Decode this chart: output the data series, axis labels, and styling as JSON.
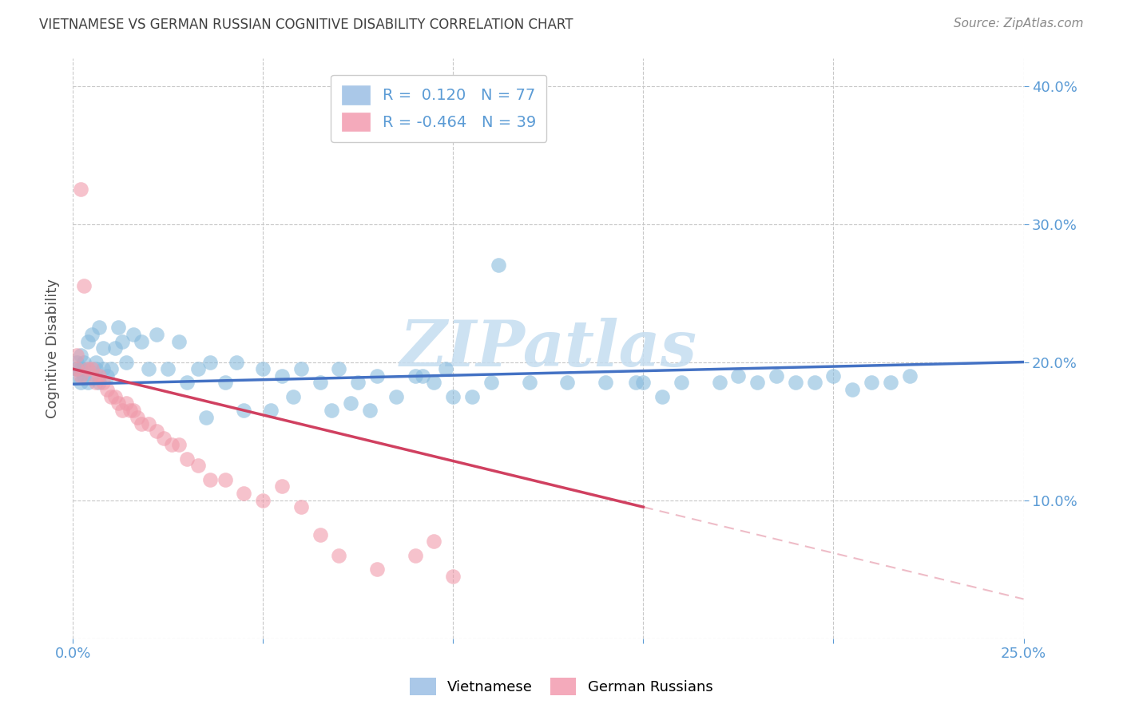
{
  "title": "VIETNAMESE VS GERMAN RUSSIAN COGNITIVE DISABILITY CORRELATION CHART",
  "source": "Source: ZipAtlas.com",
  "ylabel": "Cognitive Disability",
  "xlim": [
    0.0,
    0.25
  ],
  "ylim": [
    0.0,
    0.42
  ],
  "blue_color": "#88bbdd",
  "pink_color": "#f09aaa",
  "blue_line_color": "#4472c4",
  "pink_line_color": "#d04060",
  "axis_color": "#5b9bd5",
  "title_color": "#404040",
  "watermark_color": "#c5ddf0",
  "legend_R_blue": "0.120",
  "legend_N_blue": "77",
  "legend_R_pink": "-0.464",
  "legend_N_pink": "39",
  "viet_x": [
    0.001,
    0.001,
    0.001,
    0.002,
    0.002,
    0.002,
    0.003,
    0.003,
    0.003,
    0.004,
    0.004,
    0.005,
    0.005,
    0.006,
    0.006,
    0.007,
    0.007,
    0.008,
    0.008,
    0.009,
    0.01,
    0.011,
    0.012,
    0.013,
    0.014,
    0.016,
    0.018,
    0.02,
    0.022,
    0.025,
    0.028,
    0.03,
    0.033,
    0.036,
    0.04,
    0.043,
    0.05,
    0.055,
    0.06,
    0.065,
    0.07,
    0.075,
    0.08,
    0.09,
    0.095,
    0.1,
    0.105,
    0.11,
    0.12,
    0.13,
    0.14,
    0.15,
    0.155,
    0.16,
    0.17,
    0.175,
    0.18,
    0.185,
    0.19,
    0.195,
    0.2,
    0.205,
    0.21,
    0.215,
    0.22,
    0.085,
    0.092,
    0.098,
    0.035,
    0.045,
    0.052,
    0.058,
    0.068,
    0.073,
    0.078,
    0.112,
    0.148
  ],
  "viet_y": [
    0.195,
    0.2,
    0.19,
    0.195,
    0.185,
    0.205,
    0.19,
    0.195,
    0.2,
    0.185,
    0.215,
    0.22,
    0.19,
    0.195,
    0.2,
    0.225,
    0.185,
    0.195,
    0.21,
    0.19,
    0.195,
    0.21,
    0.225,
    0.215,
    0.2,
    0.22,
    0.215,
    0.195,
    0.22,
    0.195,
    0.215,
    0.185,
    0.195,
    0.2,
    0.185,
    0.2,
    0.195,
    0.19,
    0.195,
    0.185,
    0.195,
    0.185,
    0.19,
    0.19,
    0.185,
    0.175,
    0.175,
    0.185,
    0.185,
    0.185,
    0.185,
    0.185,
    0.175,
    0.185,
    0.185,
    0.19,
    0.185,
    0.19,
    0.185,
    0.185,
    0.19,
    0.18,
    0.185,
    0.185,
    0.19,
    0.175,
    0.19,
    0.195,
    0.16,
    0.165,
    0.165,
    0.175,
    0.165,
    0.17,
    0.165,
    0.27,
    0.185
  ],
  "german_x": [
    0.001,
    0.001,
    0.002,
    0.002,
    0.003,
    0.004,
    0.005,
    0.006,
    0.007,
    0.008,
    0.009,
    0.01,
    0.011,
    0.012,
    0.013,
    0.014,
    0.015,
    0.016,
    0.017,
    0.018,
    0.02,
    0.022,
    0.024,
    0.026,
    0.028,
    0.03,
    0.033,
    0.036,
    0.04,
    0.045,
    0.05,
    0.055,
    0.06,
    0.065,
    0.07,
    0.08,
    0.09,
    0.095,
    0.1
  ],
  "german_y": [
    0.195,
    0.205,
    0.19,
    0.325,
    0.255,
    0.195,
    0.195,
    0.185,
    0.19,
    0.185,
    0.18,
    0.175,
    0.175,
    0.17,
    0.165,
    0.17,
    0.165,
    0.165,
    0.16,
    0.155,
    0.155,
    0.15,
    0.145,
    0.14,
    0.14,
    0.13,
    0.125,
    0.115,
    0.115,
    0.105,
    0.1,
    0.11,
    0.095,
    0.075,
    0.06,
    0.05,
    0.06,
    0.07,
    0.045
  ]
}
